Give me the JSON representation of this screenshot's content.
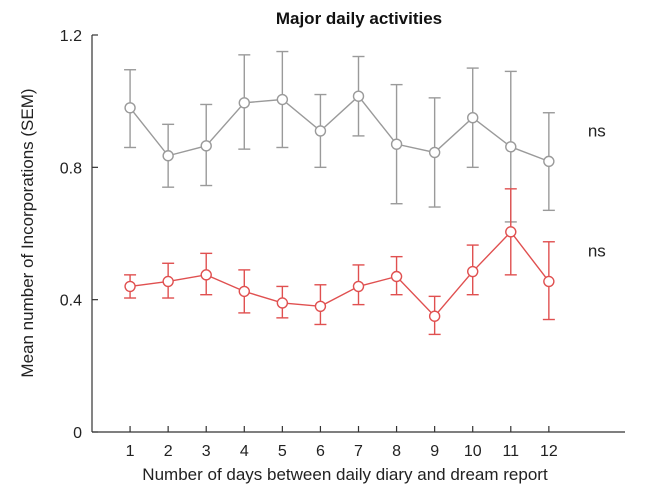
{
  "chart_data": {
    "type": "line",
    "title": "Major daily activities",
    "xlabel": "Number of days between daily diary and dream report",
    "ylabel": "Mean number of Incorporations (SEM)",
    "x": [
      1,
      2,
      3,
      4,
      5,
      6,
      7,
      8,
      9,
      10,
      11,
      12
    ],
    "x_ticks": [
      "1",
      "2",
      "3",
      "4",
      "5",
      "6",
      "7",
      "8",
      "9",
      "10",
      "11",
      "12"
    ],
    "xlim": [
      0,
      14
    ],
    "y_ticks": [
      "0",
      "0.4",
      "0.8",
      "1.2"
    ],
    "ylim": [
      0,
      1.2
    ],
    "grid": false,
    "legend": "none",
    "series": [
      {
        "color": "#9a9a9a",
        "values": [
          0.98,
          0.835,
          0.865,
          0.995,
          1.005,
          0.91,
          1.015,
          0.87,
          0.845,
          0.95,
          0.862,
          0.818
        ],
        "err_low": [
          0.86,
          0.74,
          0.745,
          0.855,
          0.86,
          0.8,
          0.895,
          0.69,
          0.68,
          0.8,
          0.635,
          0.67
        ],
        "err_high": [
          1.095,
          0.93,
          0.99,
          1.14,
          1.15,
          1.02,
          1.135,
          1.05,
          1.01,
          1.1,
          1.09,
          0.965
        ],
        "annotation": "ns"
      },
      {
        "color": "#e05050",
        "values": [
          0.44,
          0.455,
          0.475,
          0.425,
          0.39,
          0.38,
          0.44,
          0.47,
          0.35,
          0.485,
          0.605,
          0.455
        ],
        "err_low": [
          0.405,
          0.405,
          0.415,
          0.36,
          0.345,
          0.325,
          0.385,
          0.415,
          0.295,
          0.415,
          0.475,
          0.34
        ],
        "err_high": [
          0.475,
          0.51,
          0.54,
          0.49,
          0.44,
          0.445,
          0.505,
          0.53,
          0.41,
          0.565,
          0.735,
          0.575
        ],
        "annotation": "ns"
      }
    ]
  }
}
